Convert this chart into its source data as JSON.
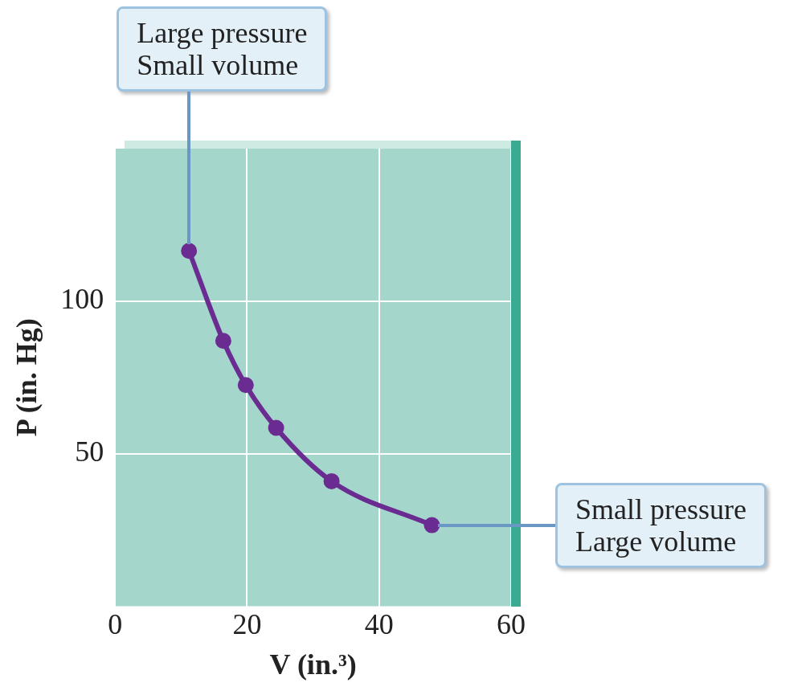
{
  "chart_data": {
    "type": "line",
    "xlabel": "V (in.³)",
    "ylabel": "P (in. Hg)",
    "x": [
      11.2,
      16.4,
      19.8,
      24.4,
      32.8,
      48
    ],
    "series": [
      {
        "color": "#6a2c91",
        "values": [
          116.5,
          87,
          72.5,
          58.5,
          41,
          26.6
        ]
      }
    ],
    "xlim": [
      0,
      60
    ],
    "xticks": [
      0,
      20,
      40,
      60
    ],
    "ylim": [
      0,
      150
    ],
    "yticks": [
      50,
      100
    ],
    "grid": true,
    "legend": false,
    "marker": "circle",
    "line_style": "solid",
    "annotations": [
      "Large pressure\nSmall volume",
      "Small pressure\nLarge volume"
    ]
  }
}
